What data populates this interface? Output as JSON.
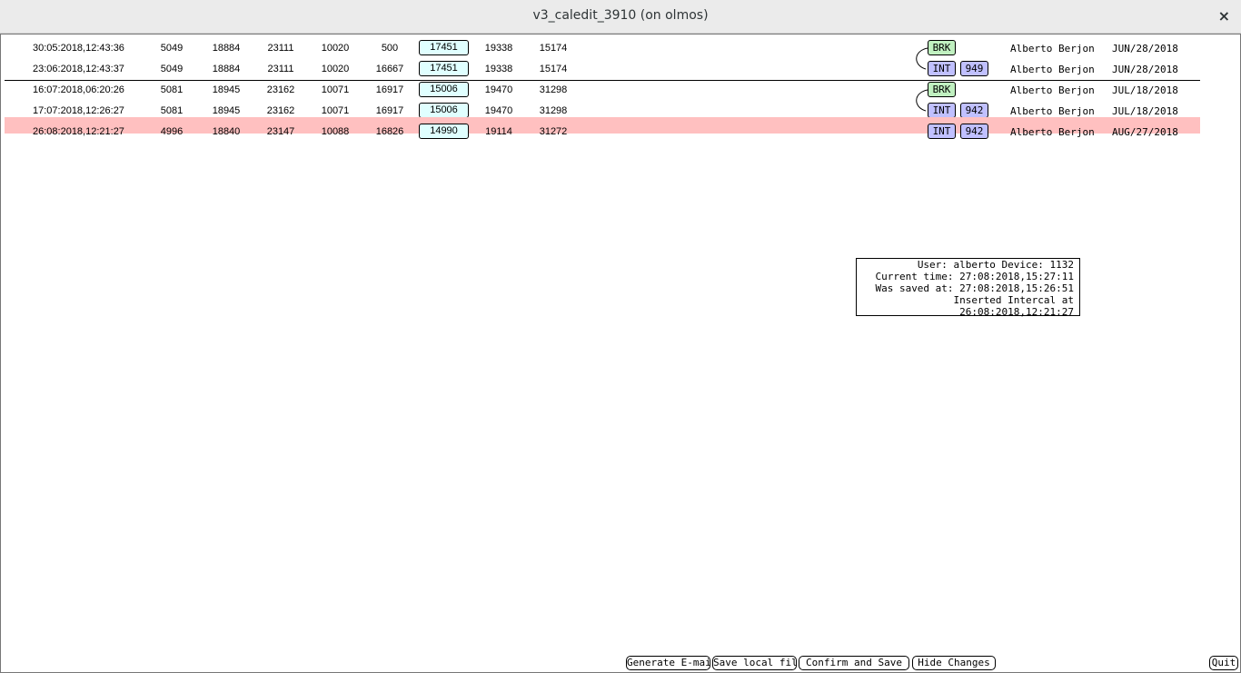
{
  "window": {
    "title": "v3_caledit_3910 (on olmos)",
    "close": "×"
  },
  "rows": [
    {
      "date": "30:05:2018,12:43:36",
      "values": [
        5049,
        18884,
        23111,
        10020,
        500,
        17451,
        19338,
        15174
      ],
      "tags": [
        "BRK"
      ],
      "user": "Alberto Berjon",
      "day": "JUN/28/2018"
    },
    {
      "date": "23:06:2018,12:43:37",
      "values": [
        5049,
        18884,
        23111,
        10020,
        16667,
        17451,
        19338,
        15174
      ],
      "tags": [
        "INT",
        "949"
      ],
      "user": "Alberto Berjon",
      "day": "JUN/28/2018"
    },
    {
      "date": "16:07:2018,06:20:26",
      "values": [
        5081,
        18945,
        23162,
        10071,
        16917,
        15006,
        19470,
        31298
      ],
      "tags": [
        "BRK"
      ],
      "user": "Alberto Berjon",
      "day": "JUL/18/2018"
    },
    {
      "date": "17:07:2018,12:26:27",
      "values": [
        5081,
        18945,
        23162,
        10071,
        16917,
        15006,
        19470,
        31298
      ],
      "tags": [
        "INT",
        "942"
      ],
      "user": "Alberto Berjon",
      "day": "JUL/18/2018"
    },
    {
      "date": "26:08:2018,12:21:27",
      "values": [
        4996,
        18840,
        23147,
        10088,
        16826,
        14990,
        19114,
        31272
      ],
      "tags": [
        "INT",
        "942"
      ],
      "user": "Alberto Berjon",
      "day": "AUG/27/2018"
    }
  ],
  "info": [
    "User: alberto Device: 1132",
    "Current time: 27:08:2018,15:27:11",
    "Was saved at: 27:08:2018,15:26:51",
    "Inserted Intercal at 26:08:2018,12:21:27"
  ],
  "buttons": [
    "Generate E-mail",
    "Save local file",
    "Confirm and Save",
    "Hide Changes",
    "Quit"
  ]
}
